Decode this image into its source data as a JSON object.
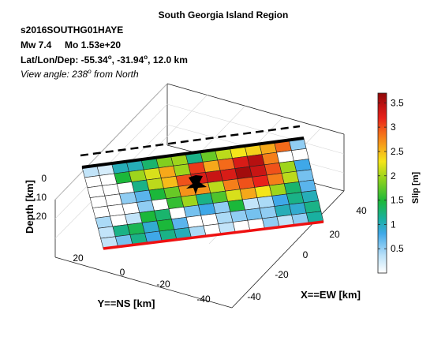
{
  "header": {
    "title": "South Georgia Island Region",
    "event_id": "s2016SOUTHG01HAYE",
    "magnitude": "Mw 7.4     Mo 1.53e+20",
    "location_prefix": "Lat/Lon/Dep: -55.34",
    "location_lon": ", -31.94",
    "location_dep": ", 12.0 km",
    "degree_mark": "o",
    "view_prefix": "View angle: 238",
    "view_suffix": " from North"
  },
  "chart_data": {
    "type": "heatmap",
    "title": "South Georgia Island Region",
    "xlabel": "X==EW [km]",
    "ylabel": "Y==NS [km]",
    "zlabel": "Depth [km]",
    "x_ticks": [
      "40",
      "20",
      "0",
      "-20",
      "-40"
    ],
    "y_ticks": [
      "20",
      "0",
      "-20",
      "-40"
    ],
    "z_ticks": [
      "0",
      "10",
      "20"
    ],
    "colorbar": {
      "label": "Slip [m]",
      "range": [
        0,
        3.7
      ],
      "ticks": [
        "0.5",
        "1",
        "1.5",
        "2",
        "2.5",
        "3",
        "3.5"
      ],
      "tick_values": [
        0.5,
        1,
        1.5,
        2,
        2.5,
        3,
        3.5
      ]
    },
    "grid": "on",
    "rows": 8,
    "cols": 15,
    "slip": [
      [
        0.3,
        0.2,
        1.0,
        1.0,
        1.3,
        1.9,
        2.0,
        1.2,
        1.8,
        2.1,
        2.3,
        2.4,
        2.6,
        2.9,
        0.5
      ],
      [
        0.0,
        0.0,
        1.5,
        2.0,
        2.2,
        2.6,
        2.0,
        3.1,
        2.6,
        2.9,
        3.3,
        3.5,
        2.8,
        0.0,
        0.0
      ],
      [
        0.0,
        0.0,
        0.0,
        1.2,
        2.1,
        2.5,
        3.0,
        3.3,
        3.4,
        3.3,
        3.6,
        3.4,
        3.0,
        2.0,
        0.8
      ],
      [
        0.0,
        0.0,
        0.5,
        0.7,
        1.5,
        1.8,
        2.7,
        2.7,
        2.1,
        2.8,
        3.0,
        3.2,
        2.8,
        2.1,
        0.6
      ],
      [
        0.0,
        0.0,
        0.0,
        0.5,
        0.0,
        1.6,
        2.0,
        1.2,
        1.7,
        2.2,
        2.6,
        2.3,
        2.0,
        1.3,
        0.7
      ],
      [
        0.4,
        0.0,
        0.3,
        1.5,
        1.3,
        0.0,
        0.6,
        0.8,
        0.5,
        1.5,
        0.3,
        0.4,
        0.8,
        1.2,
        1.0
      ],
      [
        0.3,
        1.2,
        1.4,
        0.9,
        1.5,
        0.7,
        0.0,
        0.0,
        0.4,
        0.5,
        0.6,
        0.5,
        1.0,
        0.9,
        1.2
      ],
      [
        0.3,
        0.6,
        1.2,
        0.8,
        1.2,
        1.0,
        0.4,
        0.0,
        0.3,
        0.0,
        0.0,
        0.5,
        0.3,
        0.5,
        1.1
      ]
    ],
    "epicenter_marker": "star"
  }
}
